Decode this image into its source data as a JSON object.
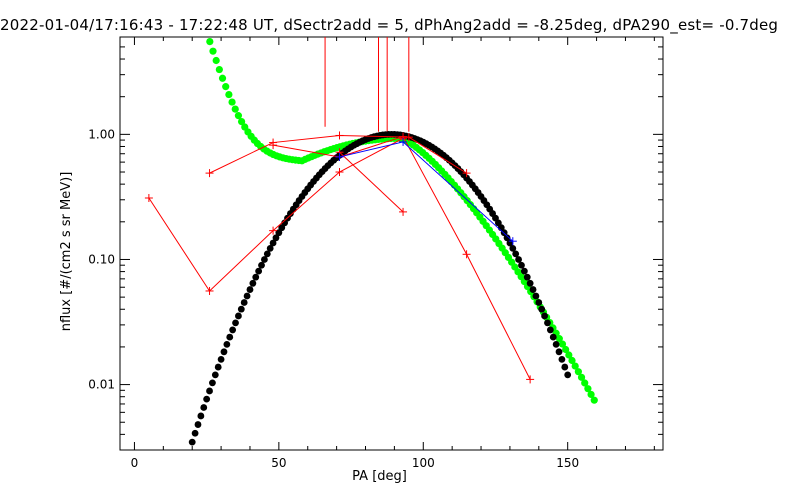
{
  "chart_data": {
    "type": "scatter",
    "title": "2022-01-04/17:16:43 - 17:22:48 UT, dSectr2add = 5, dPhAng2add = -8.25deg, dPA290_est=  -0.7deg",
    "xlabel": "PA [deg]",
    "ylabel": "nflux [#/(cm2 s sr MeV)]",
    "xlim": [
      -5,
      183
    ],
    "ylim": [
      0.003,
      6.0
    ],
    "yscale": "log",
    "grid": false,
    "x_ticks": [
      0,
      50,
      100,
      150
    ],
    "x_tick_labels": [
      "0",
      "50",
      "100",
      "150"
    ],
    "y_ticks": [
      0.01,
      0.1,
      1.0
    ],
    "y_tick_labels": [
      "0.01",
      "0.10",
      "1.00"
    ],
    "colors": {
      "red": "#ff0000",
      "blue": "#0000ff",
      "green": "#00ff00",
      "black": "#000000"
    },
    "vertical_lines": [
      {
        "x": 66,
        "y0": 1.15,
        "y1": 6.0
      },
      {
        "x": 84.5,
        "y0": 1.05,
        "y1": 6.0
      },
      {
        "x": 87.5,
        "y0": 1.05,
        "y1": 6.0
      },
      {
        "x": 95,
        "y0": 1.05,
        "y1": 6.0
      }
    ],
    "red_series": [
      {
        "x": [
          5,
          26,
          48,
          71,
          93
        ],
        "y": [
          0.31,
          0.056,
          0.17,
          0.5,
          0.93
        ]
      },
      {
        "x": [
          26,
          48,
          71,
          95,
          115
        ],
        "y": [
          0.49,
          0.86,
          0.98,
          0.95,
          0.49
        ]
      },
      {
        "x": [
          48,
          71,
          93,
          115,
          137
        ],
        "y": [
          0.82,
          0.66,
          0.96,
          0.11,
          0.011
        ]
      },
      {
        "x": [
          71,
          93
        ],
        "y": [
          0.72,
          0.24
        ]
      }
    ],
    "blue_series": {
      "x": [
        71,
        93,
        131
      ],
      "y": [
        0.66,
        0.87,
        0.14
      ]
    },
    "green_fit": {
      "x0": 25,
      "x1": 160,
      "y0": 6.0,
      "y1": 0.008
    },
    "black_fit": {
      "peak_x": 89,
      "peak_y": 1.0,
      "sigma": 20.5,
      "x0": 20,
      "x1": 150
    }
  }
}
